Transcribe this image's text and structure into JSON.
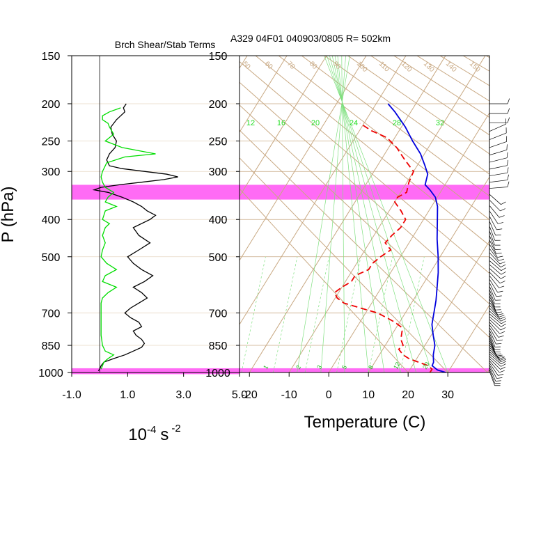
{
  "chart_data": [
    {
      "type": "line",
      "title": "Brch Shear/Stab Terms",
      "ylabel": "P (hPa)",
      "xlabel_base": "10",
      "xlabel_exp1": "-4",
      "xlabel_unit": "s",
      "xlabel_exp2": "-2",
      "xlim": [
        -1.0,
        5.0
      ],
      "x_ticks": [
        "-1.0",
        "1.0",
        "3.0",
        "5.0"
      ],
      "x_tick_values": [
        -1.0,
        1.0,
        3.0,
        5.0
      ],
      "y_scale": "log",
      "ylim": [
        1000,
        150
      ],
      "y_ticks": [
        150,
        200,
        250,
        300,
        400,
        500,
        700,
        850,
        1000
      ],
      "y_tick_labels": [
        "150",
        "200",
        "250",
        "300",
        "400",
        "500",
        "700",
        "850",
        "1000"
      ],
      "highlight_bands_hpa": [
        [
          325,
          355
        ],
        [
          975,
          1010
        ]
      ],
      "highlight_color": "#ff6bf5",
      "zero_line_x": 0.0,
      "series": [
        {
          "color": "#000000",
          "points": [
            [
              200,
              0.95
            ],
            [
              205,
              0.85
            ],
            [
              210,
              0.9
            ],
            [
              215,
              0.75
            ],
            [
              220,
              0.6
            ],
            [
              230,
              0.4
            ],
            [
              240,
              0.45
            ],
            [
              250,
              0.6
            ],
            [
              260,
              0.55
            ],
            [
              270,
              0.35
            ],
            [
              280,
              0.25
            ],
            [
              290,
              0.35
            ],
            [
              295,
              0.8
            ],
            [
              300,
              1.6
            ],
            [
              305,
              2.4
            ],
            [
              310,
              2.8
            ],
            [
              315,
              2.3
            ],
            [
              320,
              1.5
            ],
            [
              325,
              0.7
            ],
            [
              330,
              0.05
            ],
            [
              335,
              -0.2
            ],
            [
              340,
              0.3
            ],
            [
              350,
              0.8
            ],
            [
              360,
              1.2
            ],
            [
              370,
              1.5
            ],
            [
              380,
              1.7
            ],
            [
              390,
              2.0
            ],
            [
              400,
              1.8
            ],
            [
              420,
              1.2
            ],
            [
              440,
              1.4
            ],
            [
              460,
              1.8
            ],
            [
              480,
              1.4
            ],
            [
              500,
              1.0
            ],
            [
              520,
              1.2
            ],
            [
              540,
              1.5
            ],
            [
              560,
              1.9
            ],
            [
              580,
              1.6
            ],
            [
              600,
              1.2
            ],
            [
              620,
              1.5
            ],
            [
              640,
              1.7
            ],
            [
              660,
              1.4
            ],
            [
              680,
              1.1
            ],
            [
              700,
              0.9
            ],
            [
              720,
              1.1
            ],
            [
              740,
              1.4
            ],
            [
              760,
              1.5
            ],
            [
              780,
              1.2
            ],
            [
              800,
              1.3
            ],
            [
              820,
              1.5
            ],
            [
              840,
              1.6
            ],
            [
              860,
              1.5
            ],
            [
              880,
              1.2
            ],
            [
              900,
              0.9
            ],
            [
              920,
              0.5
            ],
            [
              940,
              0.15
            ],
            [
              960,
              0.05
            ],
            [
              980,
              0.0
            ],
            [
              990,
              -0.05
            ]
          ]
        },
        {
          "color": "#00dd00",
          "points": [
            [
              205,
              0.75
            ],
            [
              210,
              0.35
            ],
            [
              215,
              0.1
            ],
            [
              220,
              0.1
            ],
            [
              225,
              0.3
            ],
            [
              230,
              0.35
            ],
            [
              240,
              0.5
            ],
            [
              250,
              0.2
            ],
            [
              260,
              0.8
            ],
            [
              270,
              2.0
            ],
            [
              275,
              0.9
            ],
            [
              285,
              0.25
            ],
            [
              295,
              0.15
            ],
            [
              300,
              0.1
            ],
            [
              310,
              0.05
            ],
            [
              320,
              0.1
            ],
            [
              330,
              0.2
            ],
            [
              340,
              0.5
            ],
            [
              350,
              0.3
            ],
            [
              360,
              0.2
            ],
            [
              370,
              0.6
            ],
            [
              380,
              0.2
            ],
            [
              390,
              0.15
            ],
            [
              400,
              0.1
            ],
            [
              410,
              0.35
            ],
            [
              420,
              0.2
            ],
            [
              430,
              0.15
            ],
            [
              440,
              0.1
            ],
            [
              460,
              0.2
            ],
            [
              480,
              0.1
            ],
            [
              500,
              0.05
            ],
            [
              520,
              0.25
            ],
            [
              540,
              0.6
            ],
            [
              560,
              0.2
            ],
            [
              580,
              0.1
            ],
            [
              600,
              0.6
            ],
            [
              620,
              0.3
            ],
            [
              640,
              0.1
            ],
            [
              660,
              0.05
            ],
            [
              700,
              0.05
            ],
            [
              750,
              0.05
            ],
            [
              800,
              0.05
            ],
            [
              850,
              0.1
            ],
            [
              880,
              0.2
            ],
            [
              900,
              0.5
            ],
            [
              920,
              0.3
            ],
            [
              940,
              0.15
            ],
            [
              960,
              0.1
            ],
            [
              980,
              0.05
            ]
          ]
        }
      ]
    },
    {
      "type": "line",
      "subtype": "skew-T log-P",
      "title": "A329 04F01 040903/0805 R= 502km",
      "xlabel": "Temperature (C)",
      "x_ticks": [
        "-20",
        "-10",
        "0",
        "10",
        "20",
        "30"
      ],
      "x_tick_values": [
        -20,
        -10,
        0,
        10,
        20,
        30
      ],
      "xlim_at_1000hPa": [
        -22.5,
        40.5
      ],
      "y_scale": "log",
      "ylim": [
        1000,
        150
      ],
      "y_tick_labels": [
        "150",
        "200",
        "250",
        "300",
        "400",
        "500",
        "700",
        "850",
        "1000"
      ],
      "y_ticks": [
        150,
        200,
        250,
        300,
        400,
        500,
        700,
        850,
        1000
      ],
      "skew_deg_per_log_decade": 60,
      "highlight_bands_hpa": [
        [
          325,
          355
        ],
        [
          975,
          1010
        ]
      ],
      "highlight_color": "#ff6bf5",
      "isotherm_color": "#c8a882",
      "theta_labels": [
        "50",
        "60",
        "70",
        "80",
        "90",
        "100",
        "110",
        "120",
        "130",
        "140",
        "150"
      ],
      "mixing_ratio_labels": [
        "1",
        "2",
        "3",
        "5",
        "8",
        "12",
        "20"
      ],
      "theta_e_labels": [
        "12",
        "16",
        "20",
        "24",
        "28",
        "32"
      ],
      "theta_e_label_color": "#22dd22",
      "series": [
        {
          "color": "#0000dd",
          "style": "solid",
          "points": [
            [
              1000,
              29.5
            ],
            [
              985,
              27
            ],
            [
              960,
              25
            ],
            [
              940,
              24.8
            ],
            [
              900,
              23.6
            ],
            [
              850,
              22.5
            ],
            [
              800,
              20.5
            ],
            [
              750,
              18.5
            ],
            [
              700,
              17.2
            ],
            [
              650,
              15.8
            ],
            [
              600,
              14
            ],
            [
              550,
              12
            ],
            [
              500,
              9.5
            ],
            [
              450,
              6.5
            ],
            [
              400,
              3.5
            ],
            [
              370,
              1.5
            ],
            [
              350,
              -0.5
            ],
            [
              335,
              -3
            ],
            [
              325,
              -5
            ],
            [
              315,
              -5.5
            ],
            [
              305,
              -6
            ],
            [
              290,
              -8
            ],
            [
              270,
              -11
            ],
            [
              250,
              -15
            ],
            [
              230,
              -19
            ],
            [
              210,
              -24
            ],
            [
              200,
              -27
            ]
          ]
        },
        {
          "color": "#ee0000",
          "style": "dashed",
          "points": [
            [
              1000,
              25.5
            ],
            [
              990,
              25.5
            ],
            [
              980,
              25.5
            ],
            [
              960,
              24
            ],
            [
              940,
              21
            ],
            [
              920,
              18
            ],
            [
              900,
              16
            ],
            [
              870,
              14
            ],
            [
              850,
              14.5
            ],
            [
              820,
              13
            ],
            [
              800,
              12.5
            ],
            [
              780,
              12
            ],
            [
              760,
              11
            ],
            [
              740,
              8.8
            ],
            [
              720,
              6
            ],
            [
              700,
              3
            ],
            [
              680,
              -2
            ],
            [
              660,
              -7
            ],
            [
              640,
              -9.5
            ],
            [
              620,
              -11
            ],
            [
              600,
              -10
            ],
            [
              580,
              -8.5
            ],
            [
              560,
              -8.5
            ],
            [
              540,
              -6
            ],
            [
              520,
              -6
            ],
            [
              500,
              -5
            ],
            [
              480,
              -3.5
            ],
            [
              460,
              -6
            ],
            [
              440,
              -5.5
            ],
            [
              420,
              -4.5
            ],
            [
              400,
              -4.5
            ],
            [
              380,
              -7
            ],
            [
              360,
              -10
            ],
            [
              350,
              -10
            ],
            [
              340,
              -8.5
            ],
            [
              320,
              -9.5
            ],
            [
              300,
              -10
            ],
            [
              280,
              -14
            ],
            [
              260,
              -18
            ],
            [
              245,
              -22
            ],
            [
              235,
              -27
            ],
            [
              225,
              -31
            ]
          ]
        }
      ]
    }
  ]
}
